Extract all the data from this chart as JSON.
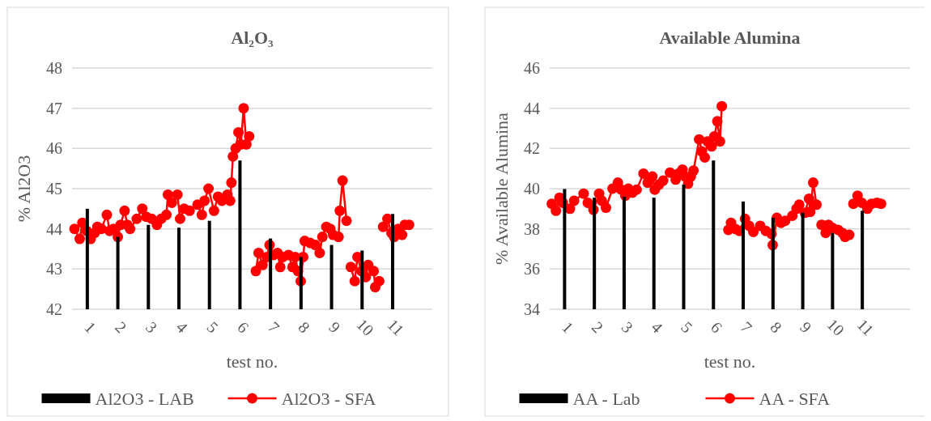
{
  "chart_data": [
    {
      "type": "bar",
      "title": "Al₂O₃",
      "xlabel": "test no.",
      "ylabel": "% Al2O3",
      "x": [
        1,
        2,
        3,
        4,
        5,
        6,
        7,
        8,
        9,
        10,
        11
      ],
      "xlim": [
        0.5,
        12.3
      ],
      "xticks": [
        1,
        2,
        3,
        4,
        5,
        6,
        7,
        8,
        9,
        10,
        11
      ],
      "ylim": [
        42,
        48
      ],
      "yticks": [
        42,
        43,
        44,
        45,
        46,
        47,
        48
      ],
      "grid": "y",
      "legend": "bottom",
      "series": [
        {
          "name": "Al2O3 - LAB",
          "color": "#000000",
          "values": [
            44.5,
            43.8,
            44.1,
            44.03,
            44.2,
            45.7,
            43.76,
            43.3,
            43.6,
            43.46,
            44.37
          ]
        },
        {
          "name": "Al2O3 - SFA",
          "type": "line",
          "color": "#ff0000",
          "marker": "circle",
          "x": [
            0.58,
            0.75,
            0.84,
            0.98,
            1.11,
            1.24,
            1.33,
            1.46,
            1.64,
            1.73,
            1.86,
            2.0,
            2.09,
            2.22,
            2.31,
            2.4,
            2.62,
            2.8,
            2.93,
            3.11,
            3.28,
            3.42,
            3.59,
            3.64,
            3.77,
            3.95,
            4.04,
            4.17,
            4.35,
            4.61,
            4.75,
            4.84,
            4.97,
            5.15,
            5.28,
            5.41,
            5.59,
            5.68,
            5.72,
            5.77,
            5.86,
            5.95,
            6.03,
            6.12,
            6.21,
            6.3,
            6.41,
            6.52,
            6.61,
            6.74,
            6.88,
            6.97,
            7.1,
            7.23,
            7.32,
            7.41,
            7.59,
            7.72,
            7.81,
            7.9,
            7.99,
            8.07,
            8.12,
            8.3,
            8.47,
            8.61,
            8.7,
            8.83,
            8.96,
            9.05,
            9.23,
            9.27,
            9.36,
            9.49,
            9.56,
            9.63,
            9.76,
            9.85,
            9.98,
            10.12,
            10.2,
            10.38,
            10.43,
            10.56,
            10.62,
            10.69,
            10.83,
            10.96,
            11.05,
            11.18,
            11.31,
            11.4,
            11.54
          ],
          "values": [
            44.0,
            43.75,
            44.15,
            43.95,
            43.75,
            43.9,
            44.05,
            44.0,
            44.35,
            43.95,
            44.0,
            43.8,
            44.1,
            44.45,
            44.1,
            44.0,
            44.25,
            44.5,
            44.3,
            44.25,
            44.1,
            44.25,
            44.35,
            44.85,
            44.65,
            44.85,
            44.25,
            44.5,
            44.45,
            44.6,
            44.35,
            44.7,
            45.0,
            44.45,
            44.8,
            44.7,
            44.85,
            44.7,
            45.15,
            45.8,
            46.0,
            46.4,
            46.1,
            47.0,
            46.1,
            46.3,
            null,
            42.95,
            43.4,
            43.1,
            43.3,
            43.6,
            43.35,
            43.4,
            43.05,
            43.3,
            43.35,
            43.05,
            43.3,
            42.95,
            42.7,
            43.3,
            43.7,
            43.65,
            43.6,
            43.4,
            43.8,
            44.05,
            44.0,
            43.85,
            43.8,
            44.45,
            45.2,
            44.2,
            null,
            43.05,
            42.7,
            43.3,
            42.95,
            42.8,
            43.1,
            42.95,
            42.55,
            42.7,
            null,
            44.05,
            44.25,
            43.9,
            43.8,
            44.0,
            43.85,
            44.1,
            44.1
          ]
        }
      ]
    },
    {
      "type": "bar",
      "title": "Available Alumina",
      "xlabel": "test no.",
      "ylabel": "% Available Alumina",
      "x": [
        1,
        2,
        3,
        4,
        5,
        6,
        7,
        8,
        9,
        10,
        11
      ],
      "xlim": [
        0.5,
        12.6
      ],
      "xticks": [
        1,
        2,
        3,
        4,
        5,
        6,
        7,
        8,
        9,
        10,
        11
      ],
      "ylim": [
        34,
        46
      ],
      "yticks": [
        34,
        36,
        38,
        40,
        42,
        44,
        46
      ],
      "grid": "y",
      "legend": "bottom",
      "series": [
        {
          "name": "AA - Lab",
          "color": "#000000",
          "values": [
            39.98,
            39.55,
            39.6,
            39.55,
            40.2,
            41.4,
            39.36,
            38.55,
            38.8,
            37.8,
            38.9
          ]
        },
        {
          "name": "AA - SFA",
          "type": "line",
          "color": "#ff0000",
          "marker": "circle",
          "x": [
            0.57,
            0.71,
            0.83,
            0.94,
            1.18,
            1.32,
            1.64,
            1.78,
            1.97,
            2.16,
            2.25,
            2.39,
            2.61,
            2.79,
            2.9,
            3.04,
            3.14,
            3.28,
            3.42,
            3.65,
            3.79,
            3.95,
            4.03,
            4.17,
            4.31,
            4.54,
            4.73,
            4.82,
            4.96,
            5.05,
            5.15,
            5.24,
            5.33,
            5.52,
            5.61,
            5.71,
            5.8,
            5.94,
            6.03,
            6.13,
            6.22,
            6.28,
            6.4,
            6.5,
            6.59,
            6.73,
            6.87,
            7.06,
            7.2,
            7.34,
            7.57,
            7.76,
            7.95,
            7.99,
            8.13,
            8.27,
            8.41,
            8.65,
            8.79,
            8.88,
            9.07,
            9.21,
            9.25,
            9.35,
            9.46,
            9.55,
            9.63,
            9.77,
            9.86,
            10.0,
            10.19,
            10.33,
            10.42,
            10.56,
            10.63,
            10.7,
            10.84,
            10.98,
            11.17,
            11.31,
            11.49,
            11.63
          ],
          "values": [
            39.25,
            38.9,
            39.55,
            39.3,
            39.0,
            39.4,
            39.75,
            39.3,
            38.95,
            39.75,
            39.4,
            39.05,
            40.0,
            40.3,
            39.95,
            39.65,
            40.0,
            39.8,
            39.95,
            40.75,
            40.3,
            40.6,
            39.95,
            40.2,
            40.4,
            40.8,
            40.45,
            40.75,
            40.95,
            40.6,
            40.25,
            40.6,
            40.9,
            42.45,
            41.85,
            41.55,
            42.35,
            42.1,
            42.6,
            43.35,
            42.35,
            44.1,
            null,
            37.95,
            38.3,
            38.0,
            37.9,
            38.5,
            38.15,
            37.85,
            38.15,
            37.9,
            37.75,
            37.2,
            38.55,
            38.3,
            38.4,
            38.65,
            39.0,
            39.2,
            38.8,
            39.5,
            38.85,
            40.3,
            39.2,
            null,
            38.2,
            37.8,
            38.2,
            38.05,
            37.95,
            37.8,
            37.6,
            37.7,
            null,
            39.25,
            39.65,
            39.3,
            39.0,
            39.25,
            39.3,
            39.25
          ]
        }
      ]
    }
  ]
}
